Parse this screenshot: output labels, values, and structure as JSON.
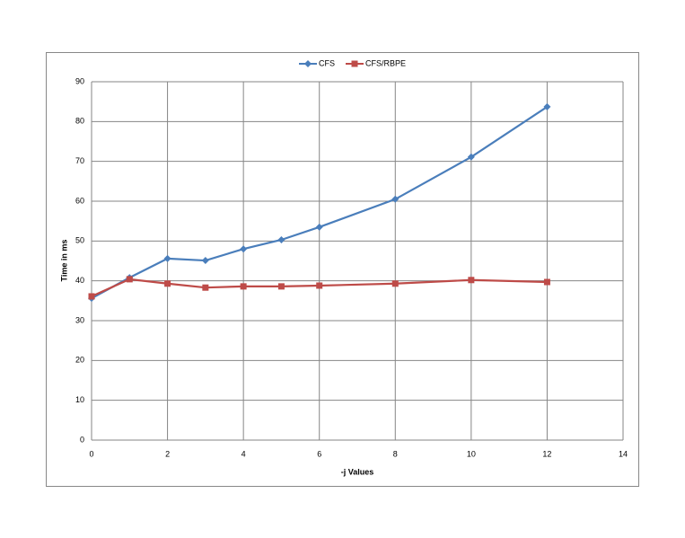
{
  "chart_data": {
    "type": "line",
    "x": [
      0,
      1,
      2,
      3,
      4,
      5,
      6,
      8,
      10,
      12
    ],
    "series": [
      {
        "name": "CFS",
        "color": "#4a7ebb",
        "marker": "diamond",
        "values": [
          35.6,
          40.8,
          45.6,
          45.1,
          48,
          50.3,
          53.5,
          60.5,
          71.1,
          83.7
        ]
      },
      {
        "name": "CFS/RBPE",
        "color": "#be4b48",
        "marker": "square",
        "values": [
          36.1,
          40.4,
          39.3,
          38.3,
          38.6,
          38.6,
          38.8,
          39.3,
          40.2,
          39.7
        ]
      }
    ],
    "xlabel": "-j Values",
    "ylabel": "Time in ms",
    "xlim": [
      0,
      14
    ],
    "xticks": [
      0,
      2,
      4,
      6,
      8,
      10,
      12,
      14
    ],
    "ylim": [
      0,
      90
    ],
    "yticks": [
      0,
      10,
      20,
      30,
      40,
      50,
      60,
      70,
      80,
      90
    ],
    "grid": true,
    "legend": "top"
  }
}
